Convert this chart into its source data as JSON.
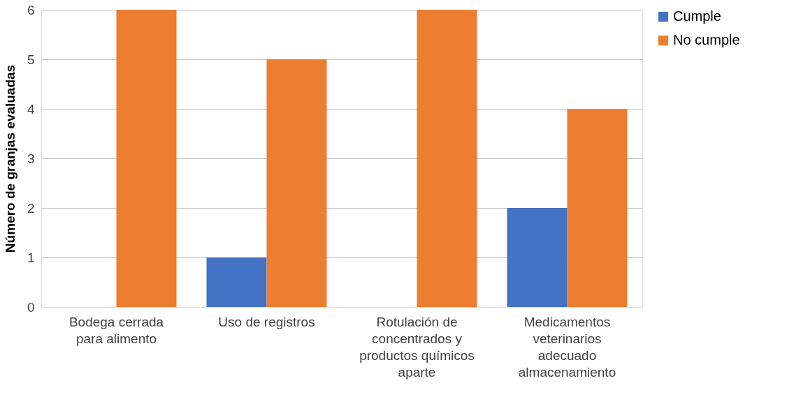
{
  "chart_data": {
    "type": "bar",
    "ylabel": "Número de granjas evaluadas",
    "categories": [
      "Bodega cerrada para alimento",
      "Uso de registros",
      "Rotulación de concentrados y productos químicos aparte",
      "Medicamentos veterinarios adecuado almacenamiento"
    ],
    "series": [
      {
        "name": "Cumple",
        "color": "#4472c4",
        "values": [
          0,
          1,
          0,
          2
        ]
      },
      {
        "name": "No cumple",
        "color": "#ed7d31",
        "values": [
          6,
          5,
          6,
          4
        ]
      }
    ],
    "ylim": [
      0,
      6
    ],
    "yticks": [
      0,
      1,
      2,
      3,
      4,
      5,
      6
    ],
    "grid": "y",
    "legend": "right"
  }
}
